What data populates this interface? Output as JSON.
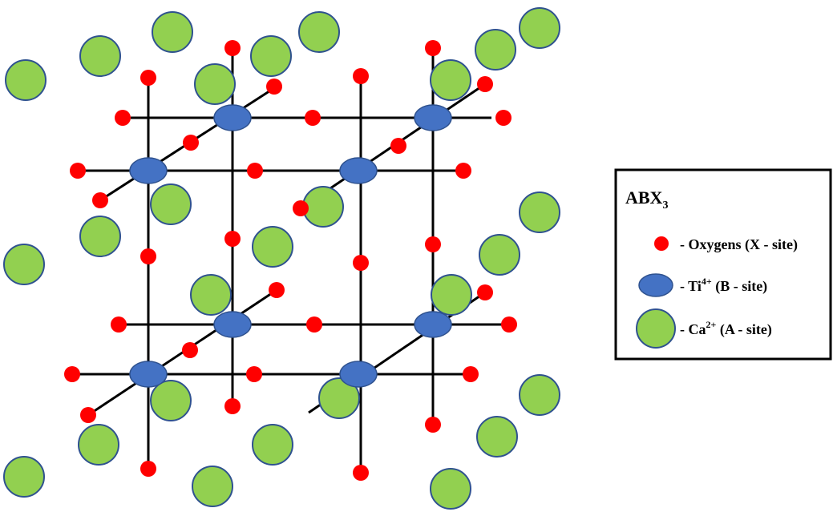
{
  "colors": {
    "background": "#ffffff",
    "bond": "#000000",
    "oxygen": "#ff0000",
    "titanium": "#4472c4",
    "titanium_stroke": "#2f528f",
    "calcium": "#92d050",
    "calcium_stroke": "#2f528f"
  },
  "legend": {
    "title_main": "ABX",
    "title_sub": "3",
    "oxygen_label": "- Oxygens (X - site)",
    "ti_prefix": "- Ti",
    "ti_sup": "4+",
    "ti_suffix": " (B - site)",
    "ca_prefix": "- Ca",
    "ca_sup": "2+",
    "ca_suffix": " (A - site)"
  },
  "atoms": {
    "oxygen_icon": "red-dot-icon",
    "titanium_icon": "blue-ellipse-icon",
    "calcium_icon": "green-circle-icon"
  }
}
